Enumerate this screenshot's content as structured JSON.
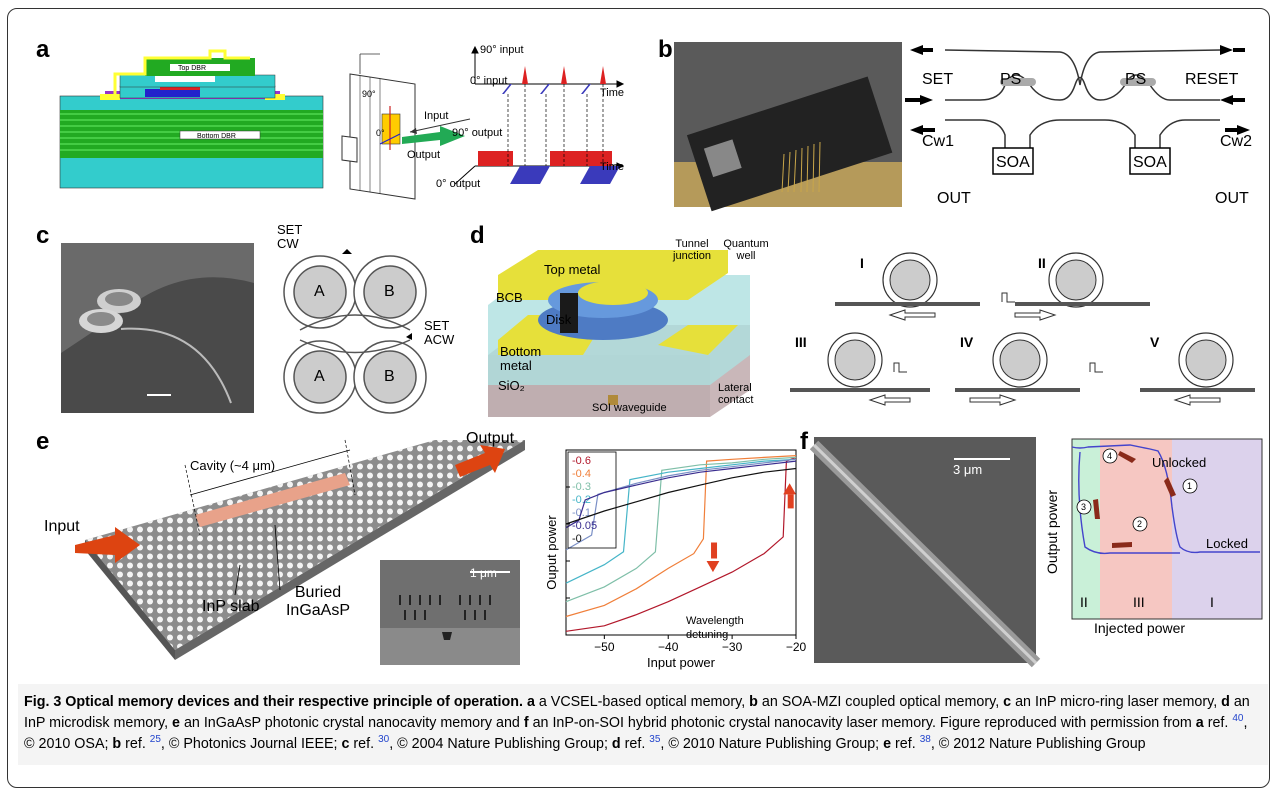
{
  "panels": {
    "a": {
      "letter": "a",
      "top_dbr": "Top DBR",
      "bottom_dbr": "Bottom DBR",
      "deg90": "90°",
      "deg0": "0°",
      "input": "Input",
      "output": "Output",
      "in90": "90° input",
      "in0": "0° input",
      "out90": "90° output",
      "out0": "0° output",
      "time1": "Time",
      "time2": "Time"
    },
    "b": {
      "letter": "b",
      "set": "SET",
      "reset": "RESET",
      "ps_left": "PS",
      "ps_right": "PS",
      "cw1": "Cw1",
      "cw2": "Cw2",
      "soa_left": "SOA",
      "soa_right": "SOA",
      "out_left": "OUT",
      "out_right": "OUT"
    },
    "c": {
      "letter": "c",
      "set_cw": "SET",
      "cw": "CW",
      "set_acw": "SET",
      "acw": "ACW",
      "ring_a1": "A",
      "ring_b1": "B",
      "ring_a2": "A",
      "ring_b2": "B"
    },
    "d": {
      "letter": "d",
      "top_metal": "Top metal",
      "bcb": "BCB",
      "disk": "Disk",
      "bottom_metal": "Bottom metal",
      "sio2": "SiO₂",
      "soi": "SOI waveguide",
      "tunnel": "Tunnel junction",
      "qw": "Quantum well",
      "lateral": "Lateral contact",
      "roman": [
        "I",
        "II",
        "III",
        "IV",
        "V"
      ]
    },
    "e": {
      "letter": "e",
      "cavity": "Cavity (~4 μm)",
      "output": "Output",
      "input": "Input",
      "inp_slab": "InP slab",
      "buried": "Buried InGaAsP",
      "scale": "1 μm",
      "wavelength": "Wavelength detuning"
    },
    "f": {
      "letter": "f",
      "scale": "3 μm",
      "ylabel": "Output power",
      "xlabel": "Injected power",
      "unlocked": "Unlocked",
      "locked": "Locked",
      "n1": "1",
      "n2": "2",
      "n3": "3",
      "n4": "4",
      "zone_II": "II",
      "zone_III": "III",
      "zone_I": "I"
    }
  },
  "chart_data": {
    "type": "line",
    "xlabel": "Input power",
    "ylabel": "Ouput power",
    "xlim": [
      -56,
      -20
    ],
    "xticks": [
      -50,
      -40,
      -30,
      -20
    ],
    "ylim": [
      0,
      1
    ],
    "legend_position": "top-left",
    "series": [
      {
        "name": "-0.6",
        "color": "#b2182b",
        "values": [
          [
            -56,
            0.02
          ],
          [
            -50,
            0.05
          ],
          [
            -45,
            0.11
          ],
          [
            -40,
            0.18
          ],
          [
            -35,
            0.26
          ],
          [
            -30,
            0.34
          ],
          [
            -25,
            0.44
          ],
          [
            -22,
            0.53
          ],
          [
            -21.5,
            0.94
          ],
          [
            -20,
            0.96
          ]
        ]
      },
      {
        "name": "-0.4",
        "color": "#f07f3a",
        "values": [
          [
            -56,
            0.1
          ],
          [
            -50,
            0.16
          ],
          [
            -45,
            0.25
          ],
          [
            -40,
            0.36
          ],
          [
            -36,
            0.44
          ],
          [
            -34.5,
            0.52
          ],
          [
            -34,
            0.94
          ],
          [
            -30,
            0.95
          ],
          [
            -25,
            0.96
          ],
          [
            -20,
            0.97
          ]
        ]
      },
      {
        "name": "-0.3",
        "color": "#7fbfa8",
        "values": [
          [
            -56,
            0.18
          ],
          [
            -50,
            0.26
          ],
          [
            -45,
            0.36
          ],
          [
            -42,
            0.45
          ],
          [
            -41,
            0.89
          ],
          [
            -35,
            0.92
          ],
          [
            -30,
            0.93
          ],
          [
            -25,
            0.95
          ],
          [
            -20,
            0.96
          ]
        ]
      },
      {
        "name": "-0.2",
        "color": "#46b5c8",
        "values": [
          [
            -56,
            0.28
          ],
          [
            -50,
            0.38
          ],
          [
            -47,
            0.45
          ],
          [
            -46,
            0.84
          ],
          [
            -40,
            0.88
          ],
          [
            -35,
            0.9
          ],
          [
            -30,
            0.92
          ],
          [
            -25,
            0.94
          ],
          [
            -20,
            0.95
          ]
        ]
      },
      {
        "name": "-0.1",
        "color": "#7a8fc6",
        "values": [
          [
            -56,
            0.46
          ],
          [
            -52,
            0.54
          ],
          [
            -51,
            0.76
          ],
          [
            -45,
            0.82
          ],
          [
            -40,
            0.86
          ],
          [
            -35,
            0.89
          ],
          [
            -30,
            0.91
          ],
          [
            -25,
            0.93
          ],
          [
            -20,
            0.95
          ]
        ]
      },
      {
        "name": "-0.05",
        "color": "#3a2d8f",
        "values": [
          [
            -56,
            0.58
          ],
          [
            -54,
            0.62
          ],
          [
            -53,
            0.73
          ],
          [
            -50,
            0.77
          ],
          [
            -45,
            0.81
          ],
          [
            -40,
            0.85
          ],
          [
            -35,
            0.88
          ],
          [
            -30,
            0.9
          ],
          [
            -25,
            0.92
          ],
          [
            -20,
            0.94
          ]
        ]
      },
      {
        "name": "-0",
        "color": "#111111",
        "values": [
          [
            -56,
            0.6
          ],
          [
            -50,
            0.67
          ],
          [
            -45,
            0.72
          ],
          [
            -40,
            0.77
          ],
          [
            -35,
            0.81
          ],
          [
            -30,
            0.85
          ],
          [
            -25,
            0.88
          ],
          [
            -20,
            0.9
          ]
        ]
      }
    ]
  },
  "caption": {
    "fig": "Fig. 3 Optical memory devices and their respective principle of operation.",
    "t1": " ",
    "a": "a",
    "t2": " a VCSEL-based optical memory, ",
    "b": "b",
    "t3": " an SOA-MZI coupled optical memory, ",
    "c": "c",
    "t4": " an InP micro-ring laser memory, ",
    "d": "d",
    "t5": " an InP microdisk memory, ",
    "e": "e",
    "t6": " an InGaAsP photonic crystal nanocavity memory and ",
    "f": "f",
    "t7": " an InP-on-SOI hybrid photonic crystal nanocavity laser memory. Figure reproduced with permission from ",
    "ra": "a",
    "r1": " ref. ",
    "c1": "40",
    "r1b": ", © 2010 OSA; ",
    "rb": "b",
    "r2": " ref. ",
    "c2": "25",
    "r2b": ", © Photonics Journal IEEE; ",
    "rc": "c",
    "r3": " ref. ",
    "c3": "30",
    "r3b": ", © 2004 Nature Publishing Group; ",
    "rd": "d",
    "r4": " ref. ",
    "c4": "35",
    "r4b": ", © 2010 Nature Publishing Group; ",
    "re": "e",
    "r5": " ref. ",
    "c5": "38",
    "r5b": ", © 2012 Nature Publishing Group"
  }
}
